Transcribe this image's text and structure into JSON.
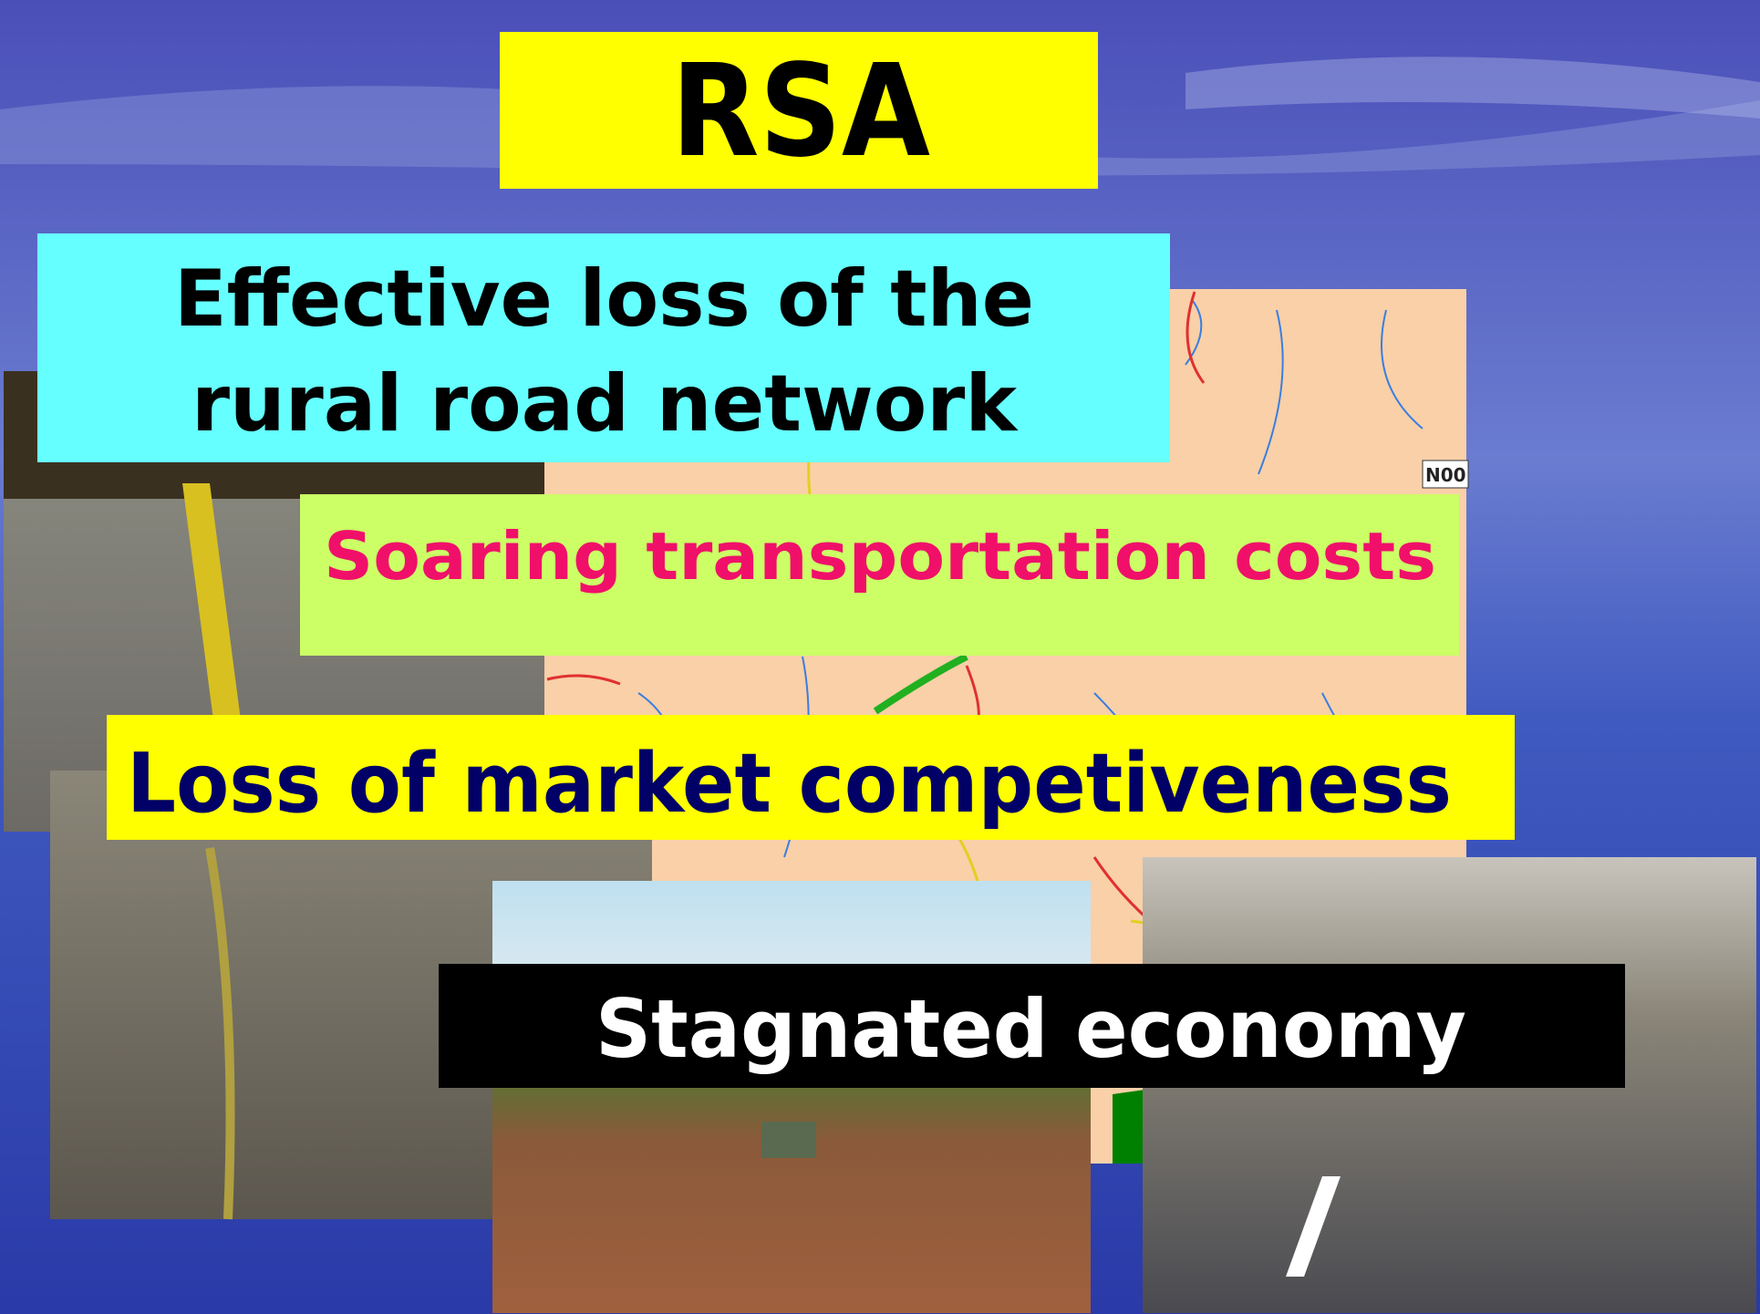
{
  "title": "RSA",
  "points": [
    {
      "lines": [
        "Effective loss of the",
        "rural road network"
      ]
    },
    {
      "lines": [
        "Soaring transportation costs"
      ]
    },
    {
      "lines": [
        "Loss of market competiveness"
      ]
    },
    {
      "lines": [
        "Stagnated economy"
      ]
    }
  ],
  "map_label": "N00"
}
